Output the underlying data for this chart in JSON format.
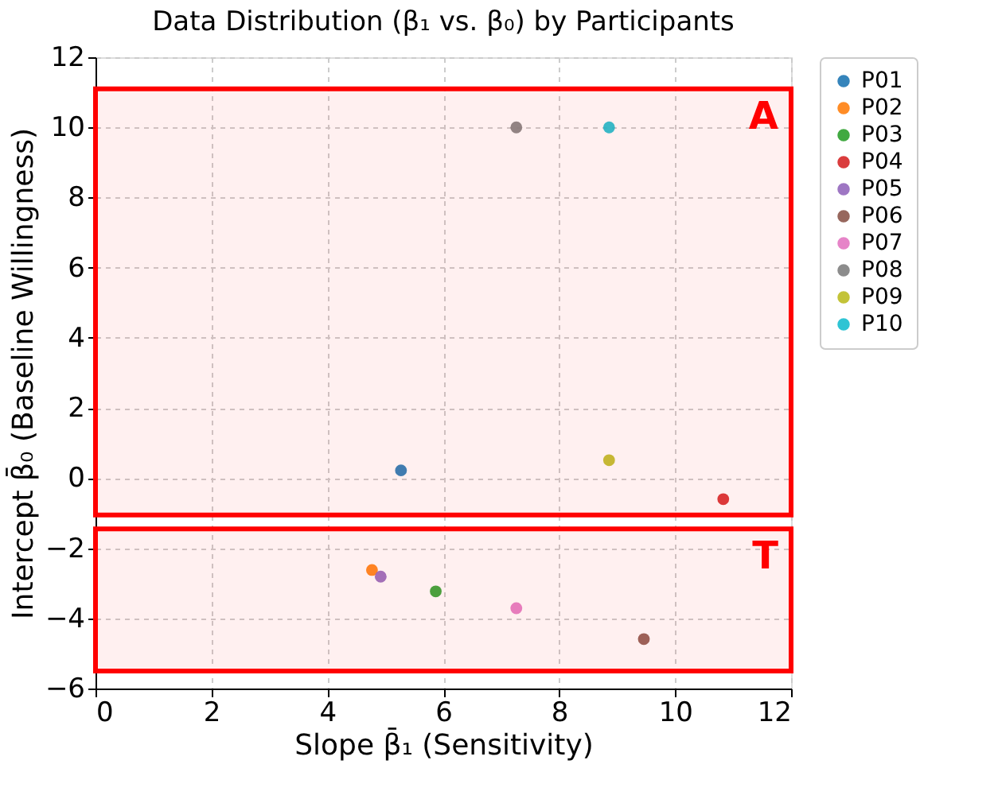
{
  "chart_data": {
    "type": "scatter",
    "title": "Data Distribution (β₁ vs. β₀) by Participants",
    "xlabel": "Slope β̄₁ (Sensitivity)",
    "ylabel": "Intercept β̄₀ (Baseline Willingness)",
    "xlim": [
      0,
      12
    ],
    "xticks": [
      0,
      2,
      4,
      6,
      8,
      10,
      12
    ],
    "ylim": [
      -6,
      12
    ],
    "yticks": [
      -6,
      -4,
      -2,
      0,
      2,
      4,
      6,
      8,
      10,
      12
    ],
    "grid": true,
    "legend": "right",
    "marker": "circle",
    "series": [
      {
        "name": "P01",
        "color": "#1f77b4",
        "x": [
          5.27
        ],
        "values": [
          0.22
        ]
      },
      {
        "name": "P02",
        "color": "#ff7f0e",
        "x": [
          4.77
        ],
        "values": [
          -2.62
        ]
      },
      {
        "name": "P03",
        "color": "#2ca02c",
        "x": [
          5.87
        ],
        "values": [
          -3.23
        ]
      },
      {
        "name": "P04",
        "color": "#d62728",
        "x": [
          10.83
        ],
        "values": [
          -0.6
        ]
      },
      {
        "name": "P05",
        "color": "#9467bd",
        "x": [
          4.92
        ],
        "values": [
          -2.81
        ]
      },
      {
        "name": "P06",
        "color": "#8c564b",
        "x": [
          9.46
        ],
        "values": [
          -4.59
        ]
      },
      {
        "name": "P07",
        "color": "#e377c2",
        "x": [
          7.26
        ],
        "values": [
          -3.71
        ]
      },
      {
        "name": "P08",
        "color": "#7f7f7f",
        "x": [
          7.26
        ],
        "values": [
          10
        ]
      },
      {
        "name": "P09",
        "color": "#bcbd22",
        "x": [
          8.86
        ],
        "values": [
          0.51
        ]
      },
      {
        "name": "P10",
        "color": "#17becf",
        "x": [
          8.86
        ],
        "values": [
          10
        ]
      }
    ],
    "bands": [
      {
        "axis": "y",
        "from": -1.05,
        "to": 11.1,
        "label": "A",
        "color": "#ff0000"
      },
      {
        "axis": "y",
        "from": -5.5,
        "to": -1.45,
        "label": "T",
        "color": "#ff0000"
      }
    ]
  }
}
